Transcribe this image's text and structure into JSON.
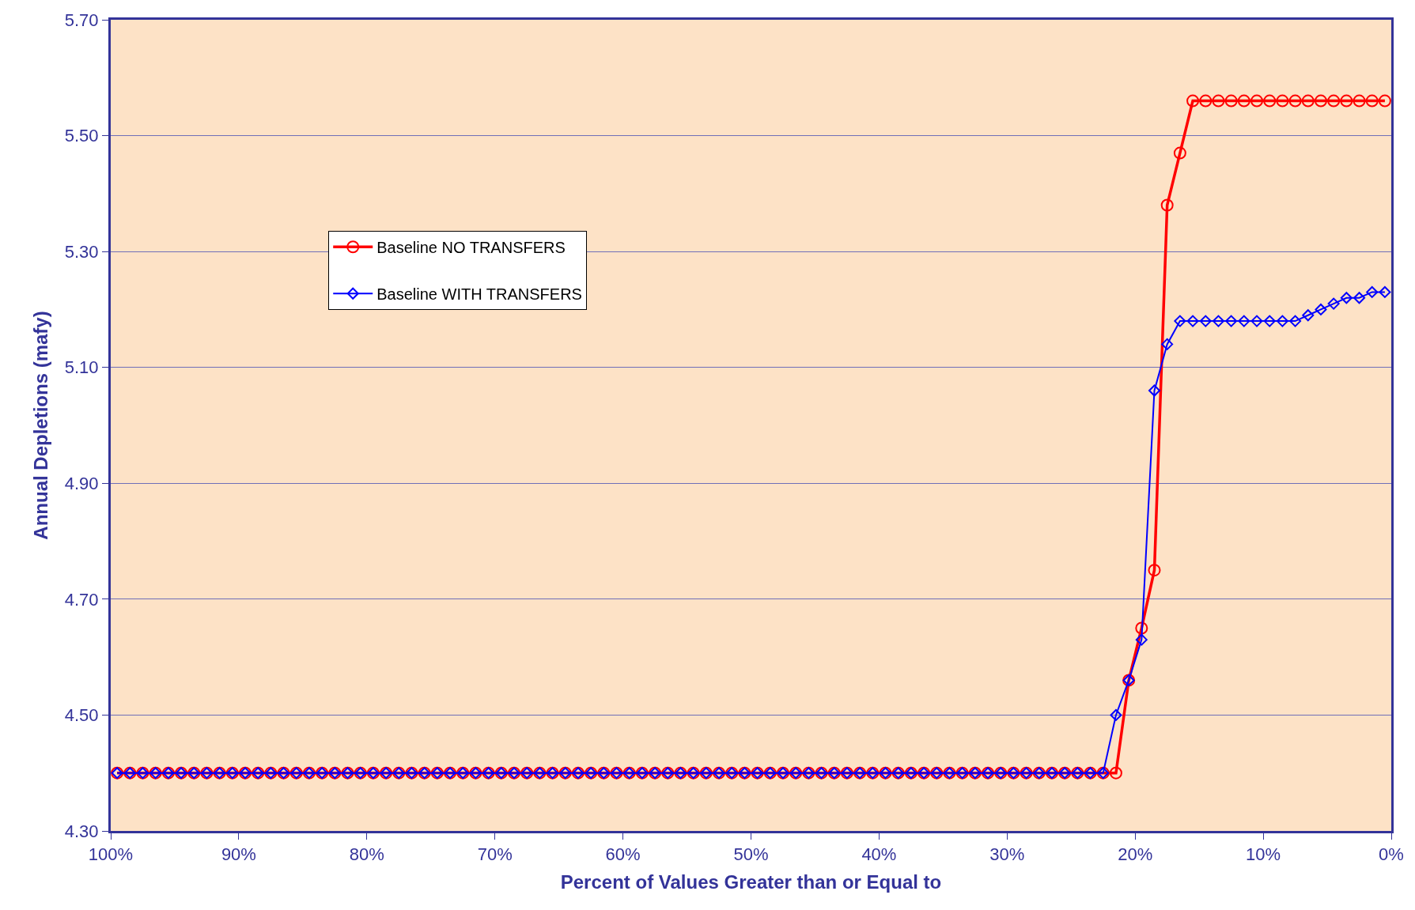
{
  "chart_data": {
    "type": "line",
    "xlabel": "Percent of Values Greater than or Equal to",
    "ylabel": "Annual Depletions (mafy)",
    "x": [
      99.5,
      98.5,
      97.5,
      96.5,
      95.5,
      94.5,
      93.5,
      92.5,
      91.5,
      90.5,
      89.5,
      88.5,
      87.5,
      86.5,
      85.5,
      84.5,
      83.5,
      82.5,
      81.5,
      80.5,
      79.5,
      78.5,
      77.5,
      76.5,
      75.5,
      74.5,
      73.5,
      72.5,
      71.5,
      70.5,
      69.5,
      68.5,
      67.5,
      66.5,
      65.5,
      64.5,
      63.5,
      62.5,
      61.5,
      60.5,
      59.5,
      58.5,
      57.5,
      56.5,
      55.5,
      54.5,
      53.5,
      52.5,
      51.5,
      50.5,
      49.5,
      48.5,
      47.5,
      46.5,
      45.5,
      44.5,
      43.5,
      42.5,
      41.5,
      40.5,
      39.5,
      38.5,
      37.5,
      36.5,
      35.5,
      34.5,
      33.5,
      32.5,
      31.5,
      30.5,
      29.5,
      28.5,
      27.5,
      26.5,
      25.5,
      24.5,
      23.5,
      22.5,
      21.5,
      20.5,
      19.5,
      18.5,
      17.5,
      16.5,
      15.5,
      14.5,
      13.5,
      12.5,
      11.5,
      10.5,
      9.5,
      8.5,
      7.5,
      6.5,
      5.5,
      4.5,
      3.5,
      2.5,
      1.5,
      0.5
    ],
    "series": [
      {
        "name": "Baseline NO TRANSFERS",
        "color": "#ff0000",
        "marker": "circle",
        "values": [
          4.4,
          4.4,
          4.4,
          4.4,
          4.4,
          4.4,
          4.4,
          4.4,
          4.4,
          4.4,
          4.4,
          4.4,
          4.4,
          4.4,
          4.4,
          4.4,
          4.4,
          4.4,
          4.4,
          4.4,
          4.4,
          4.4,
          4.4,
          4.4,
          4.4,
          4.4,
          4.4,
          4.4,
          4.4,
          4.4,
          4.4,
          4.4,
          4.4,
          4.4,
          4.4,
          4.4,
          4.4,
          4.4,
          4.4,
          4.4,
          4.4,
          4.4,
          4.4,
          4.4,
          4.4,
          4.4,
          4.4,
          4.4,
          4.4,
          4.4,
          4.4,
          4.4,
          4.4,
          4.4,
          4.4,
          4.4,
          4.4,
          4.4,
          4.4,
          4.4,
          4.4,
          4.4,
          4.4,
          4.4,
          4.4,
          4.4,
          4.4,
          4.4,
          4.4,
          4.4,
          4.4,
          4.4,
          4.4,
          4.4,
          4.4,
          4.4,
          4.4,
          4.4,
          4.4,
          4.56,
          4.65,
          4.75,
          5.38,
          5.47,
          5.56,
          5.56,
          5.56,
          5.56,
          5.56,
          5.56,
          5.56,
          5.56,
          5.56,
          5.56,
          5.56,
          5.56,
          5.56,
          5.56,
          5.56,
          5.56
        ]
      },
      {
        "name": "Baseline WITH TRANSFERS",
        "color": "#0000ff",
        "marker": "diamond",
        "values": [
          4.4,
          4.4,
          4.4,
          4.4,
          4.4,
          4.4,
          4.4,
          4.4,
          4.4,
          4.4,
          4.4,
          4.4,
          4.4,
          4.4,
          4.4,
          4.4,
          4.4,
          4.4,
          4.4,
          4.4,
          4.4,
          4.4,
          4.4,
          4.4,
          4.4,
          4.4,
          4.4,
          4.4,
          4.4,
          4.4,
          4.4,
          4.4,
          4.4,
          4.4,
          4.4,
          4.4,
          4.4,
          4.4,
          4.4,
          4.4,
          4.4,
          4.4,
          4.4,
          4.4,
          4.4,
          4.4,
          4.4,
          4.4,
          4.4,
          4.4,
          4.4,
          4.4,
          4.4,
          4.4,
          4.4,
          4.4,
          4.4,
          4.4,
          4.4,
          4.4,
          4.4,
          4.4,
          4.4,
          4.4,
          4.4,
          4.4,
          4.4,
          4.4,
          4.4,
          4.4,
          4.4,
          4.4,
          4.4,
          4.4,
          4.4,
          4.4,
          4.4,
          4.4,
          4.5,
          4.56,
          4.63,
          5.06,
          5.14,
          5.18,
          5.18,
          5.18,
          5.18,
          5.18,
          5.18,
          5.18,
          5.18,
          5.18,
          5.18,
          5.19,
          5.2,
          5.21,
          5.22,
          5.22,
          5.23,
          5.23
        ]
      }
    ],
    "xlim": [
      100,
      0
    ],
    "xticks": [
      {
        "value": 100,
        "label": "100%"
      },
      {
        "value": 90,
        "label": "90%"
      },
      {
        "value": 80,
        "label": "80%"
      },
      {
        "value": 70,
        "label": "70%"
      },
      {
        "value": 60,
        "label": "60%"
      },
      {
        "value": 50,
        "label": "50%"
      },
      {
        "value": 40,
        "label": "40%"
      },
      {
        "value": 30,
        "label": "30%"
      },
      {
        "value": 20,
        "label": "20%"
      },
      {
        "value": 10,
        "label": "10%"
      },
      {
        "value": 0,
        "label": "0%"
      }
    ],
    "ylim": [
      4.3,
      5.7
    ],
    "yticks": [
      {
        "value": 4.3,
        "label": "4.30"
      },
      {
        "value": 4.5,
        "label": "4.50"
      },
      {
        "value": 4.7,
        "label": "4.70"
      },
      {
        "value": 4.9,
        "label": "4.90"
      },
      {
        "value": 5.1,
        "label": "5.10"
      },
      {
        "value": 5.3,
        "label": "5.30"
      },
      {
        "value": 5.5,
        "label": "5.50"
      },
      {
        "value": 5.7,
        "label": "5.70"
      }
    ],
    "grid": "y",
    "legend": "top left",
    "line_style": "solid"
  }
}
